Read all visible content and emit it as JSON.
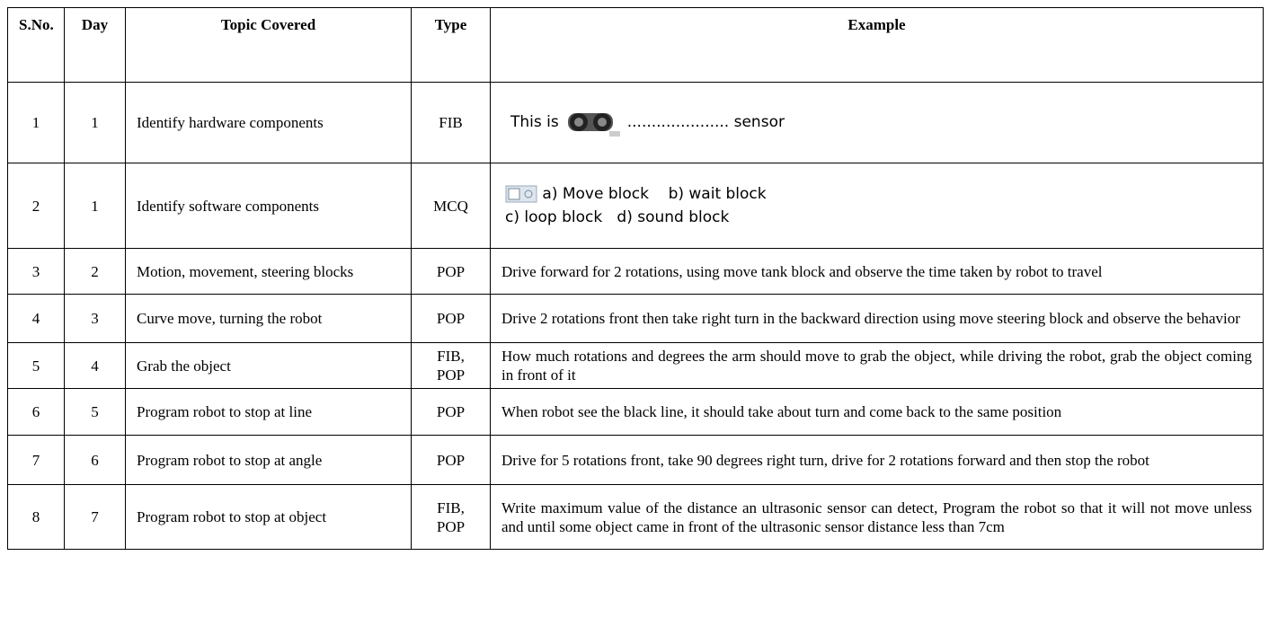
{
  "table": {
    "header": [
      "S.No.",
      "Day",
      "Topic Covered",
      "Type",
      "Example"
    ],
    "rows": [
      [
        "1",
        "1",
        "Identify hardware components",
        "FIB",
        {
          "before": "This is",
          "after": "..................... sensor"
        }
      ],
      [
        "2",
        "1",
        "Identify software components",
        "MCQ",
        {
          "lines": [
            "a) Move block    b) wait block",
            "c) loop block   d) sound block"
          ]
        }
      ],
      [
        "3",
        "2",
        "Motion, movement, steering blocks",
        "POP",
        "Drive forward for 2 rotations, using move tank block and observe the time taken by robot to travel"
      ],
      [
        "4",
        "3",
        "Curve move, turning the robot",
        "POP",
        "Drive 2 rotations front then take right turn in the backward direction using move steering block and observe the behavior"
      ],
      [
        "5",
        "4",
        "Grab the object",
        "FIB, POP",
        "How much rotations and degrees the arm should move to grab the object, while driving the robot, grab the object coming in front of it"
      ],
      [
        "6",
        "5",
        "Program robot to stop at line",
        "POP",
        "When robot see the black line, it should take about turn and come back to the same position"
      ],
      [
        "7",
        "6",
        "Program robot to stop at angle",
        "POP",
        "Drive for 5 rotations front, take 90 degrees right turn, drive for 2 rotations forward and then stop the robot"
      ],
      [
        "8",
        "7",
        "Program robot to stop at object",
        "FIB, POP",
        "Write maximum value of the distance an ultrasonic sensor can detect, Program the robot so that it will not move unless and until some object came in front of the ultrasonic sensor distance less than 7cm"
      ]
    ]
  }
}
